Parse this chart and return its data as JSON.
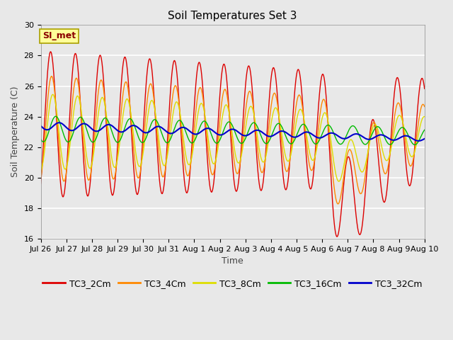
{
  "title": "Soil Temperatures Set 3",
  "xlabel": "Time",
  "ylabel": "Soil Temperature (C)",
  "ylim": [
    16,
    30
  ],
  "yticks": [
    16,
    18,
    20,
    22,
    24,
    26,
    28,
    30
  ],
  "xtick_labels": [
    "Jul 26",
    "Jul 27",
    "Jul 28",
    "Jul 29",
    "Jul 30",
    "Jul 31",
    "Aug 1",
    "Aug 2",
    "Aug 3",
    "Aug 4",
    "Aug 5",
    "Aug 6",
    "Aug 7",
    "Aug 8",
    "Aug 9",
    "Aug 10"
  ],
  "legend_labels": [
    "TC3_2Cm",
    "TC3_4Cm",
    "TC3_8Cm",
    "TC3_16Cm",
    "TC3_32Cm"
  ],
  "line_colors": [
    "#dd0000",
    "#ff8800",
    "#dddd00",
    "#00bb00",
    "#0000cc"
  ],
  "line_widths": [
    1.0,
    1.0,
    1.0,
    1.0,
    1.5
  ],
  "annotation_text": "SI_met",
  "annotation_color": "#8b0000",
  "annotation_bg": "#ffff99",
  "fig_bg_color": "#e8e8e8",
  "plot_bg_color": "#e8e8e8",
  "title_fontsize": 11,
  "axis_label_fontsize": 9,
  "tick_fontsize": 8,
  "legend_fontsize": 9,
  "n_days": 15.5,
  "period": 1.0,
  "n_points": 2000
}
